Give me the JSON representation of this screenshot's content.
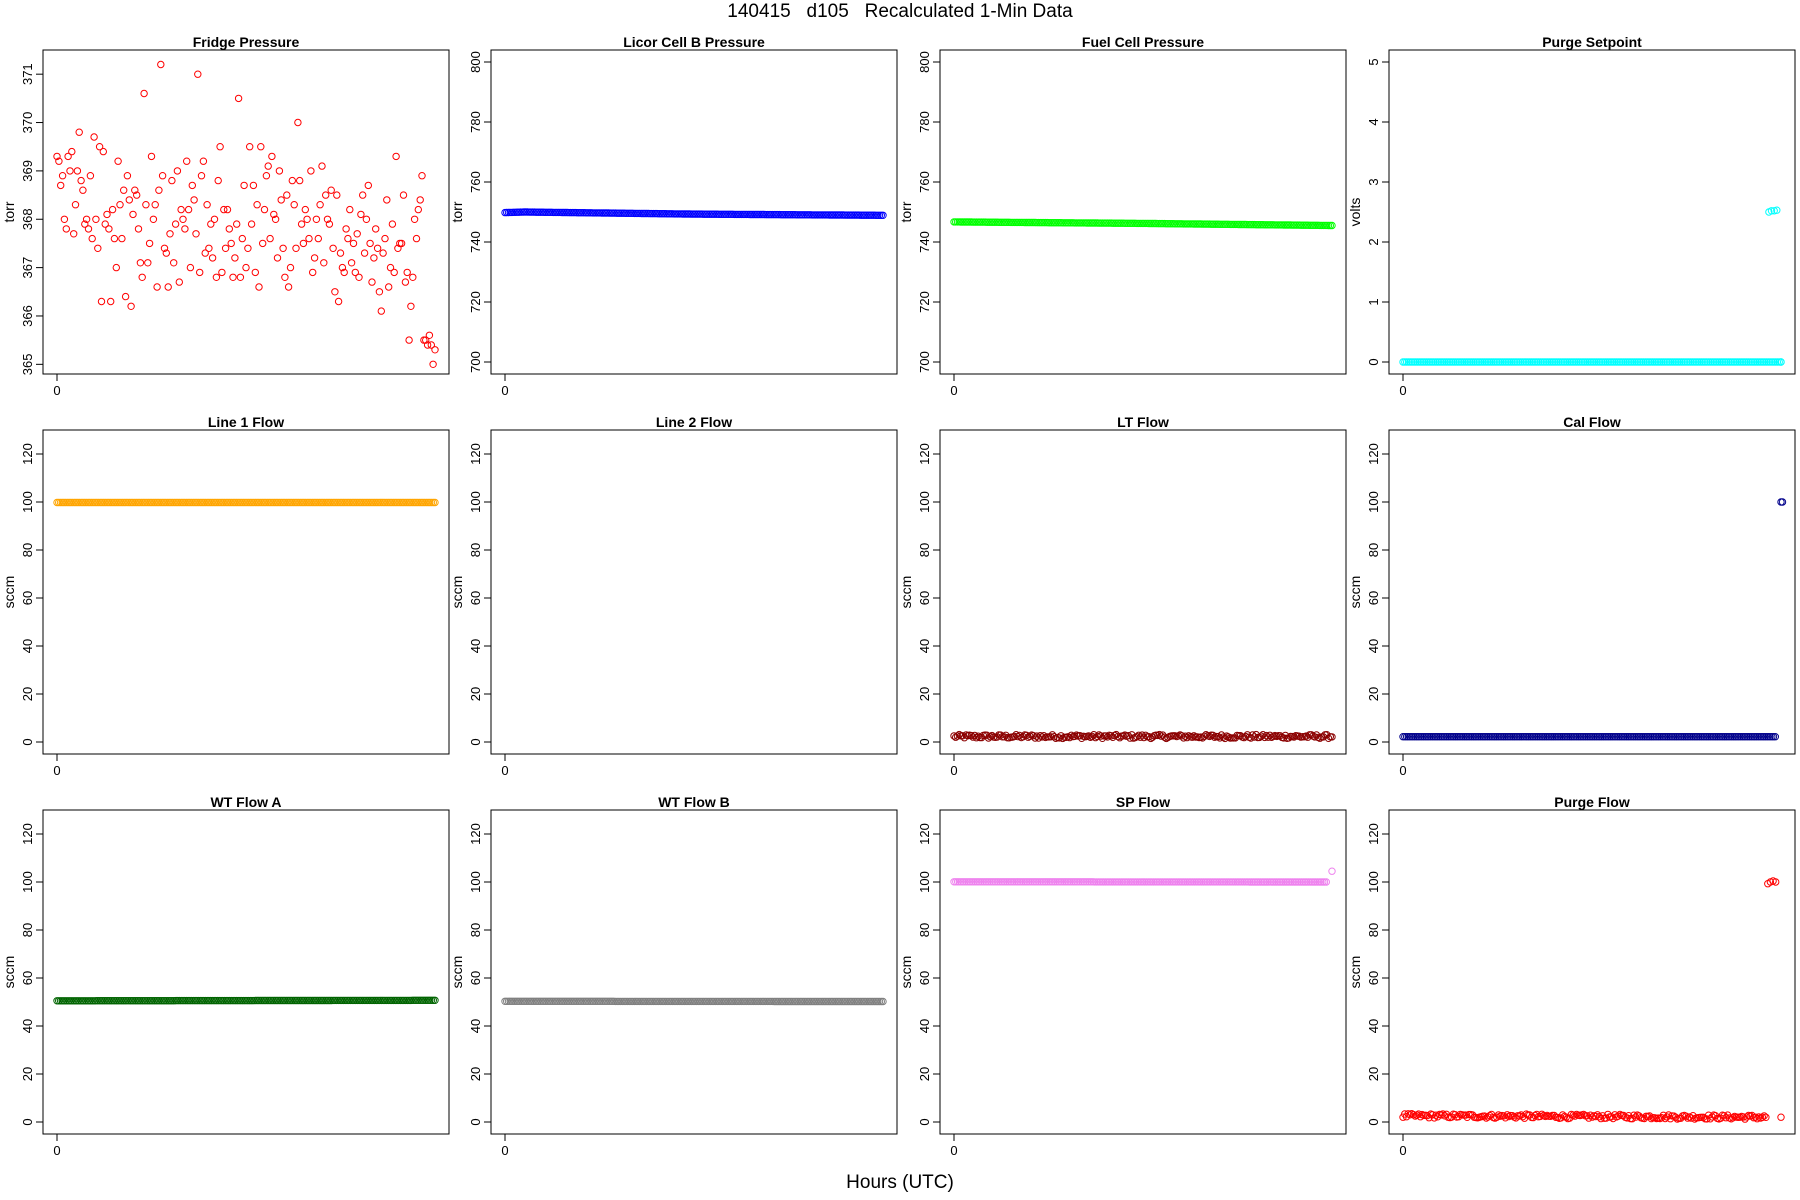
{
  "figure": {
    "title": "140415   d105   Recalculated 1-Min Data",
    "xlabel": "Hours (UTC)"
  },
  "chart_data": [
    {
      "type": "scatter",
      "title": "Fridge Pressure",
      "ylabel": "torr",
      "ylim": [
        364.8,
        371.5
      ],
      "yticks": [
        365,
        366,
        367,
        368,
        369,
        370,
        371
      ],
      "xticks": [
        0
      ],
      "color": "#ff0000",
      "n": 190,
      "y": [
        369.3,
        369.2,
        368.7,
        368.9,
        368.0,
        367.8,
        369.3,
        369.0,
        369.4,
        367.7,
        368.3,
        369.0,
        369.8,
        368.8,
        368.6,
        367.9,
        368.0,
        367.8,
        368.9,
        367.6,
        369.7,
        368.0,
        367.4,
        369.5,
        366.3,
        369.4,
        367.9,
        368.1,
        367.8,
        366.3,
        368.2,
        367.6,
        367.0,
        369.2,
        368.3,
        367.6,
        368.6,
        366.4,
        368.9,
        368.4,
        366.2,
        368.1,
        368.6,
        368.5,
        367.8,
        367.1,
        366.8,
        370.6,
        368.3,
        367.1,
        367.5,
        369.3,
        368.0,
        368.3,
        366.6,
        368.6,
        371.2,
        368.9,
        367.4,
        367.3,
        366.6,
        367.7,
        368.8,
        367.1,
        367.9,
        369.0,
        366.7,
        368.2,
        368.0,
        367.8,
        369.2,
        368.2,
        367.0,
        368.7,
        368.4,
        367.7,
        371.0,
        366.9,
        368.9,
        369.2,
        367.3,
        368.3,
        367.4,
        367.9,
        367.2,
        368.0,
        366.8,
        368.8,
        369.5,
        366.9,
        368.2,
        367.4,
        368.2,
        367.8,
        367.5,
        366.8,
        367.2,
        367.9,
        370.5,
        366.8,
        367.6,
        368.7,
        367.0,
        367.4,
        369.5,
        367.9,
        368.7,
        366.9,
        368.3,
        366.6,
        369.5,
        367.5,
        368.2,
        368.9,
        369.1,
        367.6,
        369.3,
        368.1,
        368.0,
        367.2,
        369.0,
        368.4,
        367.4,
        366.8,
        368.5,
        366.6,
        367.0,
        368.8,
        368.3,
        367.4,
        370.0,
        368.8,
        367.9,
        367.5,
        368.2,
        368.0,
        367.6,
        369.0,
        366.9,
        367.2,
        368.0,
        367.6,
        368.3,
        369.1,
        367.1,
        368.5,
        368.0,
        367.9,
        368.6,
        367.4,
        366.5,
        368.5,
        366.3,
        367.3,
        367.0,
        366.9,
        367.8,
        367.6,
        368.2,
        367.1,
        367.5,
        366.9,
        367.7,
        366.8,
        368.1,
        368.5,
        367.3,
        368.0,
        368.7,
        367.5,
        366.7,
        367.2,
        367.8,
        367.4,
        366.5,
        366.1,
        367.3,
        367.6,
        368.4,
        366.6,
        367.0,
        367.9,
        366.9,
        369.3,
        367.4,
        367.5,
        367.5,
        368.5,
        366.7,
        366.9,
        365.5
      ],
      "tail": [
        366.2,
        366.8,
        368.0,
        367.6,
        368.2,
        368.4,
        368.9,
        365.5,
        365.5,
        365.4,
        365.6,
        365.4,
        365.0,
        365.3
      ]
    },
    {
      "type": "scatter",
      "title": "Licor Cell B Pressure",
      "ylabel": "torr",
      "ylim": [
        696,
        804
      ],
      "yticks": [
        700,
        720,
        740,
        760,
        780,
        800
      ],
      "xticks": [
        0
      ],
      "color": "#0000ff",
      "n": 220,
      "series_linear": [
        {
          "x": 0,
          "y": 749.8
        },
        {
          "x": 0.05,
          "y": 750.0
        },
        {
          "x": 0.5,
          "y": 749.3
        },
        {
          "x": 1,
          "y": 748.9
        }
      ]
    },
    {
      "type": "scatter",
      "title": "Fuel Cell Pressure",
      "ylabel": "torr",
      "ylim": [
        696,
        804
      ],
      "yticks": [
        700,
        720,
        740,
        760,
        780,
        800
      ],
      "xticks": [
        0
      ],
      "color": "#00ff00",
      "n": 220,
      "series_linear": [
        {
          "x": 0,
          "y": 746.7
        },
        {
          "x": 0.5,
          "y": 746.2
        },
        {
          "x": 1,
          "y": 745.5
        }
      ]
    },
    {
      "type": "scatter",
      "title": "Purge Setpoint",
      "ylabel": "volts",
      "ylim": [
        -0.2,
        5.2
      ],
      "yticks": [
        0,
        1,
        2,
        3,
        4,
        5
      ],
      "xticks": [
        0
      ],
      "color": "#00ffff",
      "n": 210,
      "series_linear": [
        {
          "x": 0,
          "y": 0.0
        },
        {
          "x": 1,
          "y": 0.0
        }
      ],
      "extra": [
        {
          "x": 0.968,
          "y": 2.5
        },
        {
          "x": 0.975,
          "y": 2.52
        },
        {
          "x": 0.982,
          "y": 2.52
        },
        {
          "x": 0.989,
          "y": 2.53
        },
        {
          "x": 1.0,
          "y": 0.0
        }
      ]
    },
    {
      "type": "scatter",
      "title": "Line 1 Flow",
      "ylabel": "sccm",
      "ylim": [
        -5,
        130
      ],
      "yticks": [
        0,
        20,
        40,
        60,
        80,
        100,
        120
      ],
      "xticks": [
        0
      ],
      "color": "#ffa500",
      "n": 220,
      "series_linear": [
        {
          "x": 0,
          "y": 99.8
        },
        {
          "x": 1,
          "y": 99.8
        }
      ]
    },
    {
      "type": "scatter",
      "title": "Line 2 Flow",
      "ylabel": "sccm",
      "ylim": [
        -5,
        130
      ],
      "yticks": [
        0,
        20,
        40,
        60,
        80,
        100,
        120
      ],
      "xticks": [
        0
      ],
      "color": "#000000",
      "n": 0
    },
    {
      "type": "scatter",
      "title": "LT Flow",
      "ylabel": "sccm",
      "ylim": [
        -5,
        130
      ],
      "yticks": [
        0,
        20,
        40,
        60,
        80,
        100,
        120
      ],
      "xticks": [
        0
      ],
      "color": "#8b0000",
      "n": 220,
      "series_linear": [
        {
          "x": 0,
          "y": 2.3
        },
        {
          "x": 1,
          "y": 2.3
        }
      ],
      "jitter": 0.8
    },
    {
      "type": "scatter",
      "title": "Cal Flow",
      "ylabel": "sccm",
      "ylim": [
        -5,
        130
      ],
      "yticks": [
        0,
        20,
        40,
        60,
        80,
        100,
        120
      ],
      "xticks": [
        0
      ],
      "color": "#00008b",
      "n": 210,
      "series_linear": [
        {
          "x": 0,
          "y": 2.2
        },
        {
          "x": 0.985,
          "y": 2.2
        }
      ],
      "extra": [
        {
          "x": 1.0,
          "y": 100.0
        },
        {
          "x": 1.004,
          "y": 100.0
        }
      ]
    },
    {
      "type": "scatter",
      "title": "WT Flow A",
      "ylabel": "sccm",
      "ylim": [
        -5,
        130
      ],
      "yticks": [
        0,
        20,
        40,
        60,
        80,
        100,
        120
      ],
      "xticks": [
        0
      ],
      "color": "#006400",
      "n": 220,
      "series_linear": [
        {
          "x": 0,
          "y": 50.5
        },
        {
          "x": 1,
          "y": 50.7
        }
      ]
    },
    {
      "type": "scatter",
      "title": "WT Flow B",
      "ylabel": "sccm",
      "ylim": [
        -5,
        130
      ],
      "yticks": [
        0,
        20,
        40,
        60,
        80,
        100,
        120
      ],
      "xticks": [
        0
      ],
      "color": "#808080",
      "n": 220,
      "series_linear": [
        {
          "x": 0,
          "y": 50.3
        },
        {
          "x": 1,
          "y": 50.2
        }
      ]
    },
    {
      "type": "scatter",
      "title": "SP Flow",
      "ylabel": "sccm",
      "ylim": [
        -5,
        130
      ],
      "yticks": [
        0,
        20,
        40,
        60,
        80,
        100,
        120
      ],
      "xticks": [
        0
      ],
      "color": "#ee82ee",
      "n": 210,
      "series_linear": [
        {
          "x": 0,
          "y": 100.1
        },
        {
          "x": 0.985,
          "y": 100.0
        }
      ],
      "extra": [
        {
          "x": 1.0,
          "y": 104.5
        }
      ]
    },
    {
      "type": "scatter",
      "title": "Purge Flow",
      "ylabel": "sccm",
      "ylim": [
        -5,
        130
      ],
      "yticks": [
        0,
        20,
        40,
        60,
        80,
        100,
        120
      ],
      "xticks": [
        0
      ],
      "color": "#ff0000",
      "n": 210,
      "series_linear": [
        {
          "x": 0,
          "y": 2.6
        },
        {
          "x": 0.96,
          "y": 2.0
        }
      ],
      "jitter": 0.9,
      "extra": [
        {
          "x": 0.965,
          "y": 99.3
        },
        {
          "x": 0.972,
          "y": 100.0
        },
        {
          "x": 0.979,
          "y": 100.4
        },
        {
          "x": 0.986,
          "y": 100.0
        },
        {
          "x": 1.0,
          "y": 2.0
        }
      ]
    }
  ]
}
